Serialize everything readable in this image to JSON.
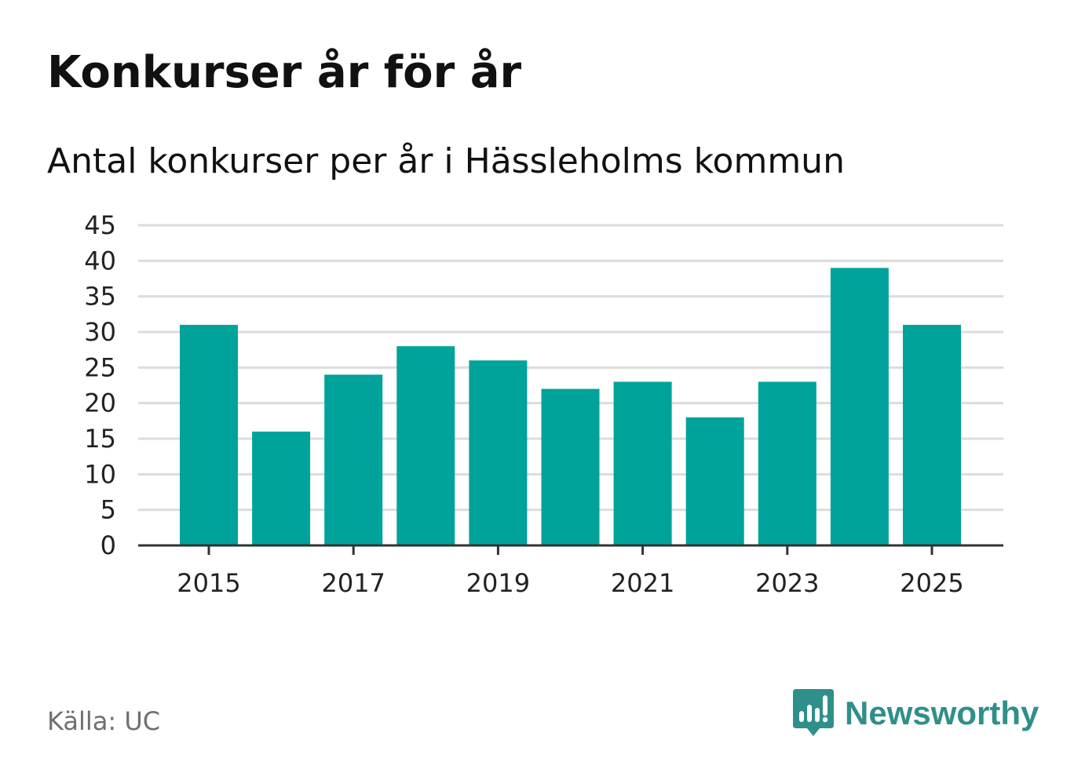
{
  "chart_data": {
    "type": "bar",
    "title": "Konkurser år för år",
    "subtitle": "Antal konkurser per år i Hässleholms kommun",
    "categories": [
      "2015",
      "2016",
      "2017",
      "2018",
      "2019",
      "2020",
      "2021",
      "2022",
      "2023",
      "2024",
      "2025"
    ],
    "values": [
      31,
      16,
      24,
      28,
      26,
      22,
      23,
      18,
      23,
      39,
      31
    ],
    "x_tick_labels": [
      "2015",
      "2017",
      "2019",
      "2021",
      "2023",
      "2025"
    ],
    "y_ticks": [
      0,
      5,
      10,
      15,
      20,
      25,
      30,
      35,
      40,
      45
    ],
    "ylim": [
      0,
      45
    ],
    "grid": true,
    "bar_color": "#00a39a"
  },
  "footer": {
    "source": "Källa: UC",
    "brand": "Newsworthy",
    "brand_icon": "newsworthy-logo-icon",
    "brand_color": "#2f8f8a"
  }
}
